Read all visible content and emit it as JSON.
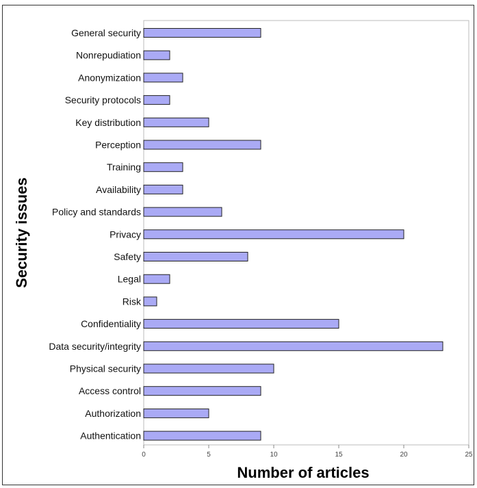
{
  "chart_data": {
    "type": "bar",
    "orientation": "horizontal",
    "title": "",
    "xlabel": "Number of articles",
    "ylabel": "Security issues",
    "xlim": [
      0,
      25
    ],
    "xticks": [
      0,
      5,
      10,
      15,
      20,
      25
    ],
    "grid": false,
    "bar_color": "#aaaaf5",
    "bar_edge_color": "#222222",
    "categories": [
      "General security",
      "Nonrepudiation",
      "Anonymization",
      "Security protocols",
      "Key distribution",
      "Perception",
      "Training",
      "Availability",
      "Policy and standards",
      "Privacy",
      "Safety",
      "Legal",
      "Risk",
      "Confidentiality",
      "Data security/integrity",
      "Physical security",
      "Access control",
      "Authorization",
      "Authentication"
    ],
    "values": [
      9,
      2,
      3,
      2,
      5,
      9,
      3,
      3,
      6,
      20,
      8,
      2,
      1,
      15,
      23,
      10,
      9,
      5,
      9
    ]
  }
}
